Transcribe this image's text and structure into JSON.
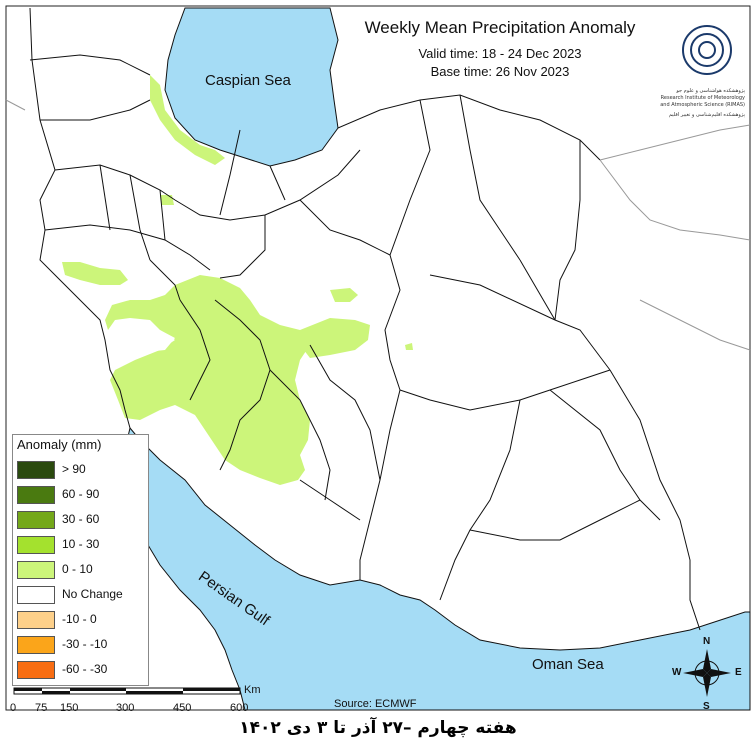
{
  "title": "Weekly Mean Precipitation Anomaly",
  "valid_time": "Valid time: 18 - 24 Dec 2023",
  "base_time": "Base time: 26 Nov 2023",
  "logo_text": [
    "پژوهشکده هواشناسی و علوم جو",
    "Research Institute of Meteorology",
    "and Atmospheric Science (RIMAS)",
    "پژوهشکده اقلیم‌شناسی و تغییر اقلیم"
  ],
  "seas": {
    "caspian": "Caspian Sea",
    "persian_gulf": "Persian Gulf",
    "oman": "Oman Sea"
  },
  "legend": {
    "title": "Anomaly (mm)",
    "items": [
      {
        "label": "> 90",
        "color": "#2b4a0f"
      },
      {
        "label": "60 - 90",
        "color": "#4a7a10"
      },
      {
        "label": "30 - 60",
        "color": "#74a81a"
      },
      {
        "label": "10 - 30",
        "color": "#a4e12e"
      },
      {
        "label": "0 - 10",
        "color": "#ccf57a"
      },
      {
        "label": "No Change",
        "color": "#ffffff"
      },
      {
        "label": "-10 - 0",
        "color": "#fdd08a"
      },
      {
        "label": "-30 - -10",
        "color": "#fba51a"
      },
      {
        "label": "-60 - -30",
        "color": "#f86d12"
      }
    ]
  },
  "scale": {
    "unit": "Km",
    "ticks": [
      "0",
      "75",
      "150",
      "300",
      "450",
      "600"
    ]
  },
  "source": "Source: ECMWF",
  "compass": {
    "n": "N",
    "s": "S",
    "e": "E",
    "w": "W"
  },
  "footer": "هفته چهارم –۲۷ آذر تا ۳ دی ۱۴۰۲",
  "colors": {
    "water": "#a5dcf5",
    "anomaly_light": "#ccf57a",
    "land": "#ffffff",
    "border": "#111111"
  }
}
